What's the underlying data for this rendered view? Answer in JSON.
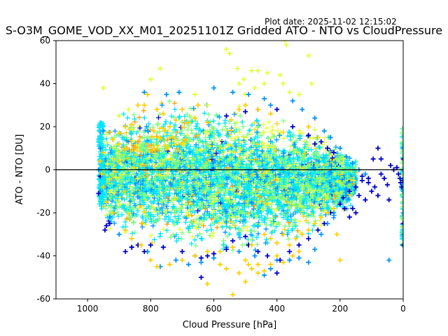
{
  "plot_date": "Plot date: 2025-11-02 12:15:02",
  "chart_data": {
    "type": "scatter",
    "title": "S-O3M_GOME_VOD_XX_M01_20251101Z Gridded ATO - NTO vs CloudPressure",
    "xlabel": "Cloud Pressure [hPa]",
    "ylabel": "ATO - NTO [DU]",
    "xlim": [
      1100,
      0
    ],
    "ylim": [
      -60,
      60
    ],
    "x_inverted": true,
    "xticks": [
      1000,
      800,
      600,
      400,
      200,
      0
    ],
    "yticks": [
      -60,
      -40,
      -20,
      0,
      20,
      40,
      60
    ],
    "zero_line": true,
    "grid": false,
    "legend": "none",
    "marker": "plus",
    "colors": [
      "#0000cd",
      "#0096ff",
      "#00e5ff",
      "#7cff79",
      "#e6ff3a",
      "#ffd000",
      "#ff9f00"
    ],
    "series": [
      {
        "color_index": 4,
        "points": [
          [
            950,
            38
          ],
          [
            770,
            47
          ],
          [
            800,
            42
          ],
          [
            560,
            56
          ],
          [
            550,
            54
          ],
          [
            525,
            47
          ],
          [
            505,
            42
          ],
          [
            480,
            46
          ],
          [
            460,
            46
          ],
          [
            430,
            45
          ],
          [
            440,
            40
          ],
          [
            390,
            44
          ],
          [
            380,
            40
          ],
          [
            375,
            60
          ],
          [
            370,
            58
          ],
          [
            300,
            53
          ],
          [
            290,
            40
          ],
          [
            330,
            35
          ],
          [
            360,
            36
          ],
          [
            470,
            38
          ],
          [
            500,
            35
          ],
          [
            520,
            40
          ],
          [
            900,
            25
          ],
          [
            870,
            28
          ],
          [
            620,
            30
          ],
          [
            660,
            35
          ]
        ]
      },
      {
        "color_index": 1,
        "points": [
          [
            710,
            36
          ],
          [
            750,
            35
          ],
          [
            820,
            36
          ],
          [
            600,
            38
          ],
          [
            540,
            36
          ],
          [
            490,
            35
          ],
          [
            440,
            33
          ],
          [
            420,
            30
          ],
          [
            350,
            32
          ],
          [
            320,
            28
          ],
          [
            280,
            24
          ],
          [
            250,
            18
          ],
          [
            230,
            15
          ],
          [
            200,
            10
          ],
          [
            180,
            6
          ],
          [
            160,
            3
          ],
          [
            140,
            0
          ],
          [
            120,
            -2
          ],
          [
            180,
            -9
          ],
          [
            200,
            -15
          ],
          [
            220,
            -20
          ],
          [
            240,
            -25
          ],
          [
            260,
            -30
          ],
          [
            280,
            -37
          ],
          [
            300,
            -43
          ],
          [
            330,
            -41
          ],
          [
            360,
            -42
          ],
          [
            400,
            -42
          ],
          [
            420,
            -46
          ],
          [
            440,
            -49
          ],
          [
            470,
            -40
          ],
          [
            520,
            -38
          ],
          [
            560,
            -36
          ],
          [
            600,
            -41
          ],
          [
            640,
            -43
          ],
          [
            680,
            -44
          ],
          [
            720,
            -42
          ],
          [
            770,
            -45
          ],
          [
            810,
            -38
          ],
          [
            860,
            -36
          ],
          [
            900,
            -30
          ],
          [
            930,
            -22
          ],
          [
            960,
            -10
          ],
          [
            965,
            0
          ],
          [
            960,
            10
          ],
          [
            950,
            18
          ],
          [
            45,
            -42
          ],
          [
            0,
            -30
          ],
          [
            0,
            -20
          ],
          [
            0,
            -10
          ],
          [
            0,
            0
          ],
          [
            0,
            10
          ]
        ]
      },
      {
        "color_index": 0,
        "points": [
          [
            960,
            -3
          ],
          [
            965,
            -11
          ],
          [
            945,
            -28
          ],
          [
            940,
            -26
          ],
          [
            930,
            -25
          ],
          [
            880,
            -38
          ],
          [
            860,
            -36
          ],
          [
            840,
            -35
          ],
          [
            820,
            -38
          ],
          [
            800,
            -35
          ],
          [
            760,
            -36
          ],
          [
            700,
            -38
          ],
          [
            660,
            -40
          ],
          [
            640,
            -41
          ],
          [
            620,
            -40
          ],
          [
            600,
            -39
          ],
          [
            640,
            -50
          ],
          [
            560,
            -37
          ],
          [
            540,
            -33
          ],
          [
            500,
            -31
          ],
          [
            490,
            -35
          ],
          [
            460,
            -38
          ],
          [
            430,
            -40
          ],
          [
            400,
            -48
          ],
          [
            390,
            -42
          ],
          [
            360,
            -38
          ],
          [
            330,
            -35
          ],
          [
            300,
            -32
          ],
          [
            270,
            -28
          ],
          [
            250,
            -25
          ],
          [
            230,
            -20
          ],
          [
            200,
            -16
          ],
          [
            190,
            -13
          ],
          [
            170,
            -10
          ],
          [
            150,
            -8
          ],
          [
            130,
            -5
          ],
          [
            110,
            -6
          ],
          [
            90,
            -8
          ],
          [
            70,
            -2
          ],
          [
            50,
            -7
          ],
          [
            45,
            -14
          ],
          [
            40,
            2
          ],
          [
            30,
            0
          ],
          [
            20,
            1
          ],
          [
            15,
            -2
          ],
          [
            10,
            -4
          ],
          [
            8,
            -6
          ],
          [
            5,
            -8
          ],
          [
            170,
            -22
          ],
          [
            185,
            -18
          ],
          [
            160,
            -18
          ],
          [
            150,
            -20
          ],
          [
            130,
            -3
          ],
          [
            110,
            -4
          ],
          [
            95,
            5
          ],
          [
            80,
            10
          ],
          [
            70,
            5
          ],
          [
            60,
            -4
          ],
          [
            80,
            -12
          ],
          [
            100,
            -10
          ],
          [
            120,
            -14
          ],
          [
            140,
            -12
          ],
          [
            240,
            10
          ],
          [
            260,
            13
          ],
          [
            220,
            8
          ],
          [
            280,
            12
          ],
          [
            300,
            16
          ],
          [
            350,
            20
          ],
          [
            400,
            28
          ],
          [
            460,
            28
          ],
          [
            500,
            27
          ],
          [
            560,
            25
          ],
          [
            0,
            -35
          ],
          [
            0,
            -25
          ],
          [
            0,
            -5
          ],
          [
            0,
            5
          ]
        ]
      },
      {
        "color_index": 5,
        "points": [
          [
            810,
            35
          ],
          [
            780,
            28
          ],
          [
            760,
            26
          ],
          [
            740,
            20
          ],
          [
            720,
            23
          ],
          [
            680,
            22
          ],
          [
            660,
            24
          ],
          [
            620,
            22
          ],
          [
            700,
            28
          ],
          [
            650,
            30
          ],
          [
            860,
            21
          ],
          [
            880,
            20
          ],
          [
            900,
            17
          ],
          [
            950,
            8
          ],
          [
            960,
            4
          ],
          [
            955,
            -2
          ],
          [
            950,
            -8
          ],
          [
            940,
            -15
          ],
          [
            920,
            -20
          ],
          [
            880,
            -28
          ],
          [
            860,
            -32
          ],
          [
            830,
            -35
          ],
          [
            800,
            -42
          ],
          [
            780,
            -45
          ],
          [
            740,
            -44
          ],
          [
            700,
            -42
          ],
          [
            660,
            -40
          ],
          [
            620,
            -38
          ],
          [
            580,
            -38
          ],
          [
            540,
            -36
          ],
          [
            500,
            -42
          ],
          [
            480,
            -46
          ],
          [
            460,
            -48
          ],
          [
            420,
            -44
          ],
          [
            400,
            -40
          ],
          [
            360,
            -35
          ],
          [
            340,
            -32
          ],
          [
            320,
            -30
          ],
          [
            300,
            -28
          ],
          [
            280,
            -25
          ],
          [
            260,
            -22
          ],
          [
            240,
            -20
          ],
          [
            220,
            -18
          ],
          [
            200,
            -42
          ],
          [
            210,
            -30
          ],
          [
            620,
            -53
          ],
          [
            540,
            -58
          ],
          [
            500,
            -52
          ],
          [
            440,
            -47
          ],
          [
            380,
            -43
          ],
          [
            350,
            -40
          ],
          [
            330,
            -38
          ],
          [
            580,
            -44
          ],
          [
            560,
            -46
          ],
          [
            520,
            -48
          ],
          [
            490,
            -44
          ],
          [
            460,
            -44
          ],
          [
            440,
            -30
          ],
          [
            420,
            -32
          ],
          [
            400,
            -34
          ],
          [
            380,
            -30
          ],
          [
            480,
            -35
          ],
          [
            840,
            30
          ],
          [
            820,
            30
          ],
          [
            790,
            18
          ],
          [
            770,
            15
          ],
          [
            730,
            15
          ],
          [
            690,
            14
          ],
          [
            650,
            16
          ],
          [
            880,
            10
          ],
          [
            900,
            12
          ],
          [
            920,
            14
          ],
          [
            500,
            30
          ],
          [
            520,
            28
          ],
          [
            460,
            28
          ],
          [
            420,
            26
          ],
          [
            300,
            20
          ],
          [
            270,
            15
          ]
        ]
      }
    ],
    "cloud": [
      {
        "x_range": [
          960,
          150
        ],
        "y_center": -5,
        "y_half_width_at": [
          [
            960,
            20
          ],
          [
            900,
            24
          ],
          [
            800,
            29
          ],
          [
            700,
            31
          ],
          [
            600,
            31
          ],
          [
            500,
            30
          ],
          [
            400,
            27
          ],
          [
            300,
            23
          ],
          [
            200,
            15
          ],
          [
            150,
            8
          ]
        ]
      }
    ]
  }
}
